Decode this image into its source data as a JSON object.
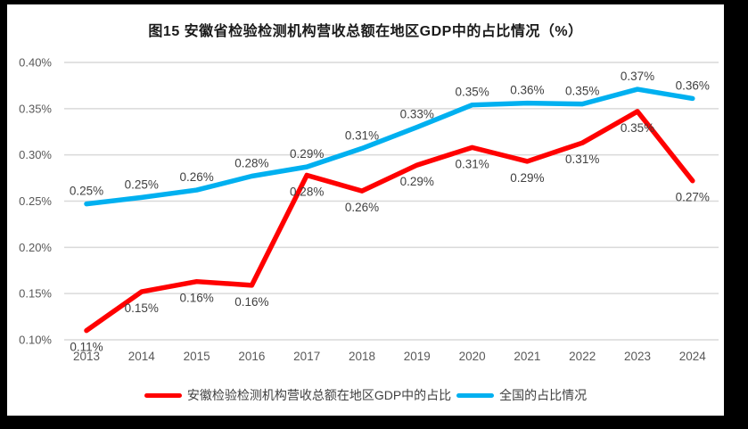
{
  "title": "图15  安徽省检验检测机构营收总额在地区GDP中的占比情况（%）",
  "legend": {
    "items": [
      {
        "label": "安徽检验检测机构营收总额在地区GDP中的占比",
        "color": "#FF0000"
      },
      {
        "label": "全国的占比情况",
        "color": "#00B0F0"
      }
    ]
  },
  "colors": {
    "anhui_series": "#FF0000",
    "national_series": "#00B0F0",
    "gridline": "#D9D9D9",
    "axis_text": "#595959",
    "data_label_text": "#404040",
    "frame_border": "#000000",
    "page_background": "#FFFFFF"
  },
  "chart_data": {
    "type": "line",
    "title": "图15  安徽省检验检测机构营收总额在地区GDP中的占比情况（%）",
    "categories": [
      "2013",
      "2014",
      "2015",
      "2016",
      "2017",
      "2018",
      "2019",
      "2020",
      "2021",
      "2022",
      "2023",
      "2024"
    ],
    "xlabel": "",
    "ylabel": "",
    "ylim": [
      0.1,
      0.4
    ],
    "grid": true,
    "legend_position": "bottom",
    "y_ticks": [
      {
        "value": 0.4,
        "label": "0.40%"
      },
      {
        "value": 0.35,
        "label": "0.35%"
      },
      {
        "value": 0.3,
        "label": "0.30%"
      },
      {
        "value": 0.25,
        "label": "0.25%"
      },
      {
        "value": 0.2,
        "label": "0.20%"
      },
      {
        "value": 0.15,
        "label": "0.15%"
      },
      {
        "value": 0.1,
        "label": "0.10%"
      }
    ],
    "series": [
      {
        "name": "安徽检验检测机构营收总额在地区GDP中的占比",
        "color": "#FF0000",
        "label_position": "below",
        "values": [
          0.11,
          0.152,
          0.163,
          0.159,
          0.278,
          0.261,
          0.289,
          0.308,
          0.293,
          0.313,
          0.347,
          0.272
        ],
        "labels": [
          "0.11%",
          "0.15%",
          "0.16%",
          "0.16%",
          "0.28%",
          "0.26%",
          "0.29%",
          "0.31%",
          "0.29%",
          "0.31%",
          "0.35%",
          "0.27%"
        ]
      },
      {
        "name": "全国的占比情况",
        "color": "#00B0F0",
        "label_position": "above",
        "values": [
          0.247,
          0.254,
          0.262,
          0.277,
          0.287,
          0.307,
          0.33,
          0.354,
          0.356,
          0.355,
          0.371,
          0.361
        ],
        "labels": [
          "0.25%",
          "0.25%",
          "0.26%",
          "0.28%",
          "0.29%",
          "0.31%",
          "0.33%",
          "0.35%",
          "0.36%",
          "0.35%",
          "0.37%",
          "0.36%"
        ]
      }
    ]
  }
}
